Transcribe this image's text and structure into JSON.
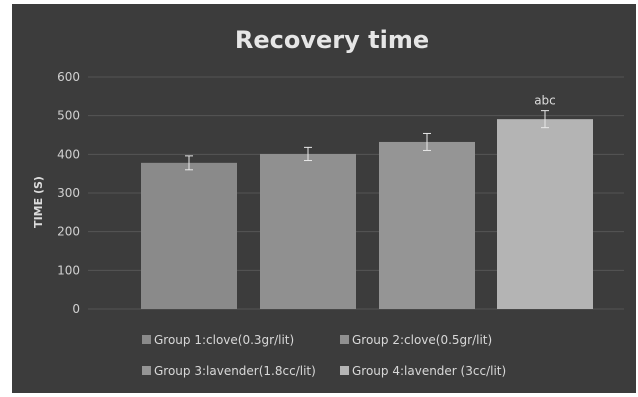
{
  "chart_data": {
    "type": "bar",
    "title": "Recovery time",
    "xlabel": "",
    "ylabel": "TIME (S)",
    "ylim": [
      0,
      600
    ],
    "yticks": [
      0,
      100,
      200,
      300,
      400,
      500,
      600
    ],
    "grid": true,
    "legend_position": "bottom",
    "categories": [
      "Group 1:clove(0.3gr/lit)",
      "Group 2:clove(0.5gr/lit)",
      "Group 3:lavender(1.8cc/lit)",
      "Group 4:lavender (3cc/lit)"
    ],
    "values": [
      378,
      401,
      432,
      491
    ],
    "errors": [
      18,
      17,
      22,
      22
    ],
    "annotations": [
      "",
      "",
      "",
      "abc"
    ],
    "colors": [
      "#8a8a8a",
      "#909090",
      "#959595",
      "#b4b4b4"
    ],
    "background": "#3c3c3c",
    "gridline_color": "#555555"
  }
}
